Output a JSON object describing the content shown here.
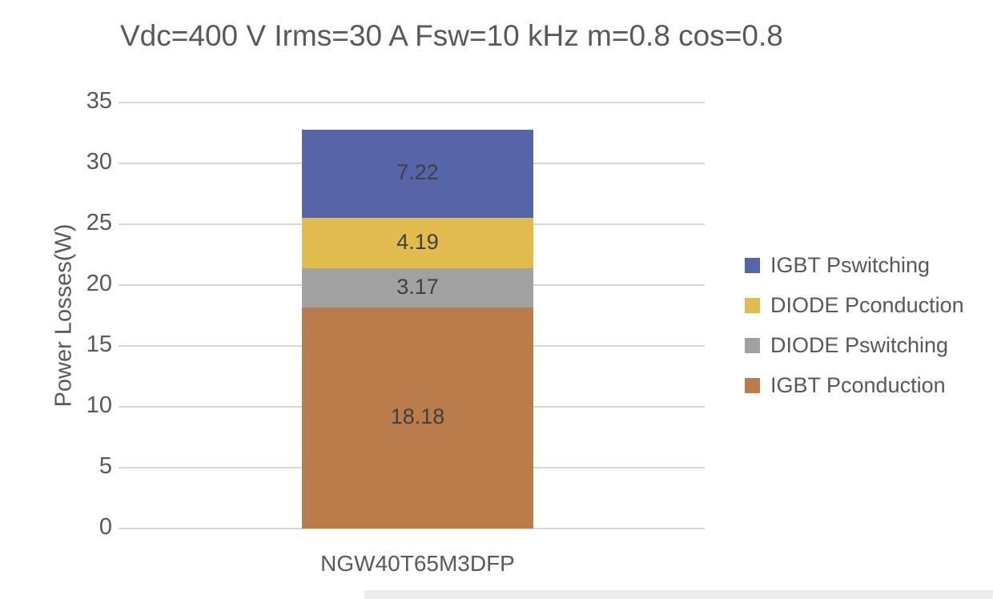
{
  "chart_data": {
    "type": "bar",
    "stacked": true,
    "title": "Vdc=400 V Irms=30 A Fsw=10 kHz m=0.8 cos=0.8",
    "categories": [
      "NGW40T65M3DFP"
    ],
    "series": [
      {
        "name": "IGBT Pconduction",
        "values": [
          18.18
        ],
        "label": "18.18",
        "color": "#b97c4a"
      },
      {
        "name": "DIODE Pswitching",
        "values": [
          3.17
        ],
        "label": "3.17",
        "color": "#a1a1a1"
      },
      {
        "name": "DIODE Pconduction",
        "values": [
          4.19
        ],
        "label": "4.19",
        "color": "#e2bb4f"
      },
      {
        "name": "IGBT Pswitching",
        "values": [
          7.22
        ],
        "label": "7.22",
        "color": "#5565a8"
      }
    ],
    "stack_total": 32.76,
    "xlabel": "",
    "ylabel": "Power Losses(W)",
    "ylim": [
      0,
      35
    ],
    "yticks": [
      0,
      5,
      10,
      15,
      20,
      25,
      30,
      35
    ],
    "grid": true,
    "data_labels": true,
    "legend_position": "right",
    "legend_order": [
      "IGBT Pswitching",
      "DIODE Pconduction",
      "DIODE Pswitching",
      "IGBT Pconduction"
    ]
  },
  "colors": {
    "text": "#595959",
    "grid": "#d8d8d8",
    "data_label": "#404040",
    "background": "#ffffff"
  }
}
